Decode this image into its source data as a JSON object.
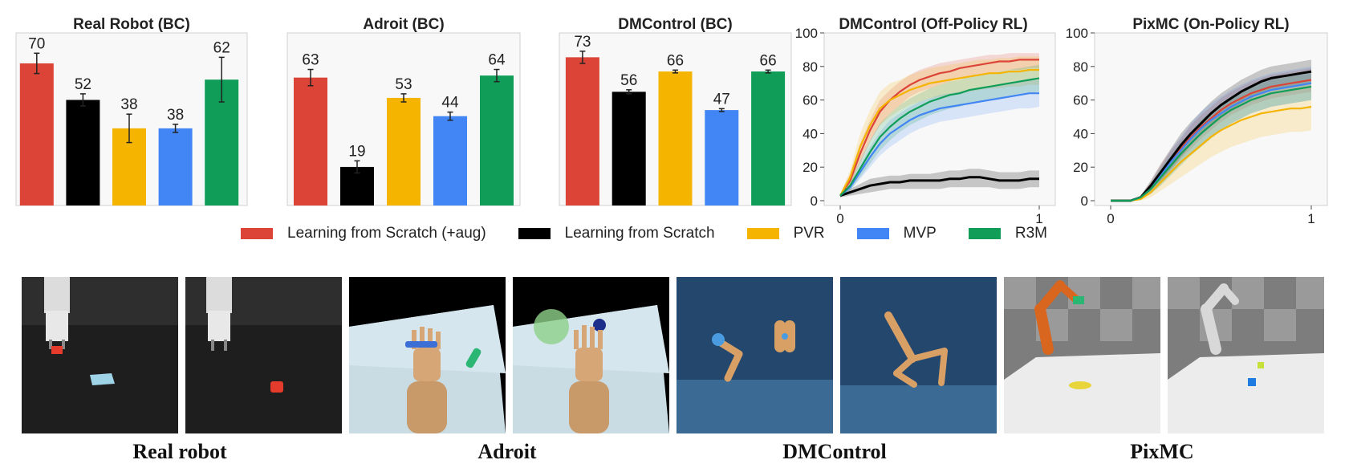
{
  "chart_data": [
    {
      "type": "bar",
      "title": "Real Robot (BC)",
      "categories": [
        "Learning from Scratch (+aug)",
        "Learning from Scratch",
        "PVR",
        "MVP",
        "R3M"
      ],
      "values": [
        70,
        52,
        38,
        38,
        62
      ],
      "errors": [
        5,
        3,
        7,
        2,
        11
      ],
      "value_labels": [
        "70",
        "52",
        "38",
        "38",
        "62"
      ],
      "ylim": [
        0,
        85
      ],
      "grid": false
    },
    {
      "type": "bar",
      "title": "Adroit (BC)",
      "categories": [
        "Learning from Scratch (+aug)",
        "Learning from Scratch",
        "PVR",
        "MVP",
        "R3M"
      ],
      "values": [
        63,
        19,
        53,
        44,
        64
      ],
      "errors": [
        4,
        3,
        2,
        2,
        3
      ],
      "value_labels": [
        "63",
        "19",
        "53",
        "44",
        "64"
      ],
      "ylim": [
        0,
        85
      ],
      "grid": false
    },
    {
      "type": "bar",
      "title": "DMControl (BC)",
      "categories": [
        "Learning from Scratch (+aug)",
        "Learning from Scratch",
        "PVR",
        "MVP",
        "R3M"
      ],
      "values": [
        73,
        56,
        66,
        47,
        66
      ],
      "errors": [
        3,
        1,
        0.7,
        0.7,
        0.7
      ],
      "value_labels": [
        "73",
        "56",
        "66",
        "47",
        "66"
      ],
      "ylim": [
        0,
        85
      ],
      "grid": false
    },
    {
      "type": "line",
      "title": "DMControl (Off-Policy RL)",
      "xlim": [
        0,
        1
      ],
      "ylim": [
        0,
        100
      ],
      "xticks": [
        "0",
        "1"
      ],
      "yticks": [
        "0",
        "20",
        "40",
        "60",
        "80",
        "100"
      ],
      "x": [
        0,
        0.05,
        0.1,
        0.15,
        0.2,
        0.25,
        0.3,
        0.35,
        0.4,
        0.45,
        0.5,
        0.55,
        0.6,
        0.65,
        0.7,
        0.75,
        0.8,
        0.85,
        0.9,
        0.95,
        1.0
      ],
      "series": [
        {
          "name": "Learning from Scratch (+aug)",
          "values": [
            3,
            12,
            28,
            42,
            53,
            60,
            65,
            69,
            72,
            74,
            76,
            77,
            79,
            80,
            81,
            82,
            83,
            83,
            84,
            84,
            84
          ],
          "lower": [
            2,
            9,
            22,
            35,
            45,
            52,
            57,
            62,
            65,
            67,
            69,
            71,
            73,
            74,
            75,
            76,
            77,
            78,
            78,
            79,
            79
          ],
          "upper": [
            4,
            16,
            34,
            48,
            60,
            66,
            71,
            75,
            78,
            80,
            82,
            83,
            84,
            85,
            86,
            87,
            87,
            88,
            88,
            88,
            88
          ]
        },
        {
          "name": "Learning from Scratch",
          "values": [
            3,
            5,
            7,
            9,
            10,
            11,
            11,
            12,
            12,
            12,
            12,
            13,
            13,
            14,
            14,
            13,
            12,
            12,
            12,
            13,
            13
          ],
          "lower": [
            2,
            3,
            4,
            5,
            6,
            7,
            7,
            7,
            7,
            7,
            7,
            8,
            8,
            8,
            8,
            8,
            7,
            7,
            7,
            8,
            8
          ],
          "upper": [
            4,
            7,
            10,
            13,
            14,
            15,
            15,
            16,
            16,
            16,
            17,
            18,
            18,
            19,
            19,
            18,
            17,
            17,
            17,
            18,
            18
          ]
        },
        {
          "name": "PVR",
          "values": [
            3,
            14,
            32,
            45,
            55,
            60,
            63,
            66,
            68,
            70,
            71,
            72,
            73,
            74,
            75,
            76,
            76,
            77,
            77,
            78,
            78
          ],
          "lower": [
            2,
            10,
            24,
            36,
            45,
            50,
            54,
            57,
            59,
            61,
            62,
            63,
            64,
            65,
            66,
            67,
            67,
            68,
            68,
            69,
            69
          ],
          "upper": [
            4,
            18,
            40,
            54,
            65,
            70,
            72,
            75,
            77,
            79,
            80,
            81,
            82,
            83,
            84,
            84,
            85,
            85,
            86,
            86,
            86
          ]
        },
        {
          "name": "MVP",
          "values": [
            3,
            8,
            17,
            26,
            34,
            40,
            44,
            48,
            51,
            53,
            55,
            56,
            57,
            58,
            59,
            60,
            61,
            62,
            63,
            64,
            64
          ],
          "lower": [
            2,
            6,
            13,
            20,
            27,
            32,
            36,
            40,
            43,
            45,
            47,
            48,
            49,
            50,
            51,
            52,
            53,
            54,
            55,
            55,
            56
          ],
          "upper": [
            4,
            10,
            21,
            32,
            41,
            48,
            52,
            56,
            59,
            61,
            63,
            64,
            65,
            66,
            67,
            68,
            69,
            70,
            71,
            72,
            72
          ]
        },
        {
          "name": "R3M",
          "values": [
            3,
            9,
            19,
            29,
            38,
            44,
            49,
            53,
            56,
            59,
            61,
            63,
            64,
            66,
            67,
            68,
            69,
            70,
            71,
            72,
            73
          ],
          "lower": [
            2,
            6,
            14,
            22,
            30,
            36,
            41,
            45,
            48,
            51,
            53,
            55,
            56,
            58,
            59,
            60,
            61,
            62,
            63,
            64,
            65
          ],
          "upper": [
            4,
            12,
            24,
            36,
            46,
            52,
            57,
            61,
            64,
            67,
            69,
            71,
            72,
            74,
            75,
            76,
            77,
            78,
            79,
            80,
            81
          ]
        }
      ]
    },
    {
      "type": "line",
      "title": "PixMC (On-Policy RL)",
      "xlim": [
        0,
        1
      ],
      "ylim": [
        0,
        100
      ],
      "xticks": [
        "0",
        "1"
      ],
      "yticks": [
        "0",
        "20",
        "40",
        "60",
        "80",
        "100"
      ],
      "x": [
        0,
        0.05,
        0.1,
        0.15,
        0.2,
        0.25,
        0.3,
        0.35,
        0.4,
        0.45,
        0.5,
        0.55,
        0.6,
        0.65,
        0.7,
        0.75,
        0.8,
        0.85,
        0.9,
        0.95,
        1.0
      ],
      "series": [
        {
          "name": "Learning from Scratch (+aug)",
          "values": [
            0,
            0,
            0,
            2,
            8,
            16,
            24,
            31,
            38,
            44,
            49,
            54,
            58,
            61,
            64,
            66,
            68,
            69,
            70,
            71,
            72
          ],
          "lower": [
            0,
            0,
            0,
            1,
            5,
            11,
            18,
            25,
            31,
            37,
            42,
            47,
            51,
            54,
            57,
            59,
            61,
            62,
            63,
            64,
            65
          ],
          "upper": [
            0,
            0,
            0,
            3,
            11,
            21,
            30,
            37,
            45,
            51,
            56,
            61,
            65,
            68,
            71,
            73,
            75,
            76,
            77,
            78,
            79
          ]
        },
        {
          "name": "Learning from Scratch",
          "values": [
            0,
            0,
            0,
            2,
            9,
            17,
            25,
            33,
            40,
            46,
            52,
            57,
            61,
            65,
            68,
            71,
            73,
            74,
            75,
            76,
            77
          ],
          "lower": [
            0,
            0,
            0,
            1,
            6,
            12,
            19,
            26,
            33,
            39,
            45,
            50,
            54,
            58,
            61,
            64,
            66,
            67,
            68,
            69,
            70
          ],
          "upper": [
            0,
            0,
            0,
            3,
            12,
            22,
            31,
            40,
            47,
            53,
            59,
            64,
            68,
            72,
            75,
            78,
            80,
            81,
            82,
            83,
            84
          ]
        },
        {
          "name": "PVR",
          "values": [
            0,
            0,
            0,
            1,
            5,
            11,
            17,
            23,
            28,
            33,
            38,
            42,
            45,
            48,
            50,
            52,
            53,
            54,
            55,
            55,
            56
          ],
          "lower": [
            0,
            0,
            0,
            0,
            2,
            6,
            10,
            14,
            18,
            22,
            26,
            29,
            32,
            34,
            36,
            38,
            39,
            40,
            41,
            41,
            42
          ],
          "upper": [
            0,
            0,
            0,
            2,
            8,
            16,
            24,
            32,
            38,
            44,
            50,
            55,
            58,
            62,
            64,
            66,
            67,
            68,
            69,
            69,
            70
          ]
        },
        {
          "name": "MVP",
          "values": [
            0,
            0,
            0,
            2,
            7,
            15,
            23,
            30,
            37,
            43,
            48,
            52,
            56,
            59,
            62,
            64,
            66,
            67,
            68,
            69,
            70
          ],
          "lower": [
            0,
            0,
            0,
            1,
            4,
            10,
            16,
            22,
            28,
            33,
            38,
            42,
            46,
            49,
            52,
            54,
            56,
            57,
            58,
            59,
            60
          ],
          "upper": [
            0,
            0,
            0,
            3,
            10,
            20,
            30,
            38,
            46,
            53,
            58,
            62,
            66,
            69,
            72,
            74,
            76,
            77,
            78,
            79,
            80
          ]
        },
        {
          "name": "R3M",
          "values": [
            0,
            0,
            0,
            2,
            7,
            14,
            21,
            28,
            34,
            40,
            45,
            50,
            54,
            57,
            60,
            62,
            64,
            65,
            66,
            67,
            68
          ],
          "lower": [
            0,
            0,
            0,
            1,
            4,
            9,
            15,
            21,
            27,
            32,
            37,
            42,
            46,
            49,
            52,
            54,
            56,
            57,
            58,
            59,
            60
          ],
          "upper": [
            0,
            0,
            0,
            3,
            10,
            19,
            27,
            35,
            41,
            48,
            53,
            58,
            62,
            65,
            68,
            70,
            72,
            73,
            74,
            75,
            76
          ]
        }
      ]
    }
  ],
  "legend": {
    "placement": "bottom-center",
    "items": [
      {
        "label": "Learning from Scratch (+aug)",
        "color": "#db4437"
      },
      {
        "label": "Learning from Scratch",
        "color": "#000000"
      },
      {
        "label": "PVR",
        "color": "#f4b400"
      },
      {
        "label": "MVP",
        "color": "#4285f4"
      },
      {
        "label": "R3M",
        "color": "#0f9d58"
      }
    ]
  },
  "colors": [
    "#db4437",
    "#000000",
    "#f4b400",
    "#4285f4",
    "#0f9d58"
  ],
  "captions": [
    "Real robot",
    "Adroit",
    "DMControl",
    "PixMC"
  ]
}
